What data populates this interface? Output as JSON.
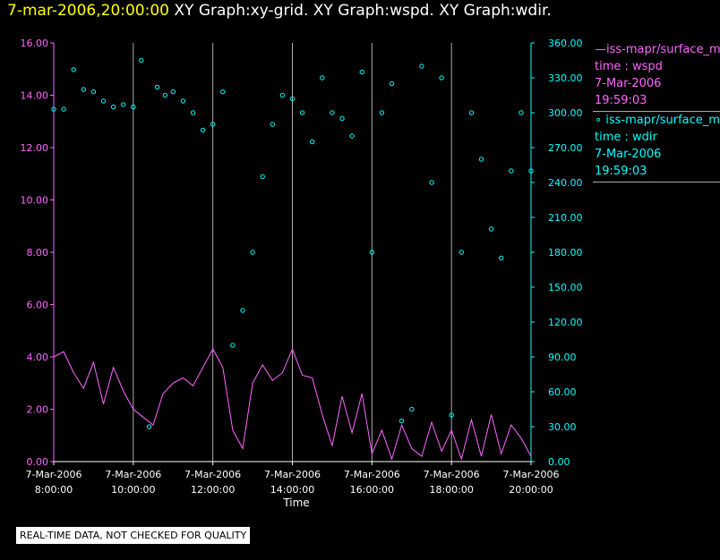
{
  "header": {
    "date_title": "7-mar-2006,20:00:00",
    "graph_titles": "XY Graph:xy-grid.  XY Graph:wspd.  XY Graph:wdir."
  },
  "legend": {
    "wspd": {
      "series": "—iss-mapr/surface_met",
      "time_label": "time : wspd",
      "date": "7-Mar-2006",
      "clock": "19:59:03"
    },
    "wdir": {
      "series": "∘ iss-mapr/surface_met",
      "time_label": "time : wdir",
      "date": "7-Mar-2006",
      "clock": "19:59:03"
    }
  },
  "notice": "REAL-TIME DATA, NOT CHECKED FOR QUALITY",
  "colors": {
    "wspd": "#ff66ff",
    "wdir": "#00ffff",
    "left_axis": "#ff66ff",
    "right_axis": "#00ffff",
    "grid": "#aaaaaa"
  },
  "chart_data": {
    "type": "line",
    "xlabel": "Time",
    "xlim": [
      8,
      20
    ],
    "ylim_left": [
      0,
      16
    ],
    "ylim_right": [
      0,
      360
    ],
    "x_ticks": [
      {
        "hour": 8,
        "date": "7-Mar-2006",
        "time": "8:00:00"
      },
      {
        "hour": 10,
        "date": "7-Mar-2006",
        "time": "10:00:00"
      },
      {
        "hour": 12,
        "date": "7-Mar-2006",
        "time": "12:00:00"
      },
      {
        "hour": 14,
        "date": "7-Mar-2006",
        "time": "14:00:00"
      },
      {
        "hour": 16,
        "date": "7-Mar-2006",
        "time": "16:00:00"
      },
      {
        "hour": 18,
        "date": "7-Mar-2006",
        "time": "18:00:00"
      },
      {
        "hour": 20,
        "date": "7-Mar-2006",
        "time": "20:00:00"
      }
    ],
    "y_left_ticks": [
      "0.00",
      "2.00",
      "4.00",
      "6.00",
      "8.00",
      "10.00",
      "12.00",
      "14.00",
      "16.00"
    ],
    "y_right_ticks": [
      "0.00",
      "30.00",
      "60.00",
      "90.00",
      "120.00",
      "150.00",
      "180.00",
      "210.00",
      "240.00",
      "270.00",
      "300.00",
      "330.00",
      "360.00"
    ],
    "series": [
      {
        "name": "wspd",
        "axis": "left",
        "style": "line",
        "x": [
          8,
          8.25,
          8.5,
          8.75,
          9,
          9.25,
          9.5,
          9.75,
          10,
          10.25,
          10.5,
          10.75,
          11,
          11.25,
          11.5,
          11.75,
          12,
          12.25,
          12.5,
          12.75,
          13,
          13.25,
          13.5,
          13.75,
          14,
          14.25,
          14.5,
          14.75,
          15,
          15.25,
          15.5,
          15.75,
          16,
          16.25,
          16.5,
          16.75,
          17,
          17.25,
          17.5,
          17.75,
          18,
          18.25,
          18.5,
          18.75,
          19,
          19.25,
          19.5,
          19.75,
          20
        ],
        "values": [
          4.0,
          4.2,
          3.4,
          2.8,
          3.8,
          2.2,
          3.6,
          2.7,
          2.0,
          1.7,
          1.4,
          2.6,
          3.0,
          3.2,
          2.9,
          3.6,
          4.3,
          3.6,
          1.2,
          0.5,
          3.0,
          3.7,
          3.1,
          3.4,
          4.3,
          3.3,
          3.2,
          1.8,
          0.6,
          2.5,
          1.1,
          2.6,
          0.3,
          1.2,
          0.1,
          1.4,
          0.5,
          0.2,
          1.5,
          0.4,
          1.2,
          0.1,
          1.6,
          0.2,
          1.8,
          0.3,
          1.4,
          0.9,
          0.2
        ]
      },
      {
        "name": "wdir",
        "axis": "right",
        "style": "scatter",
        "x": [
          8,
          8.25,
          8.5,
          8.75,
          9,
          9.25,
          9.5,
          9.75,
          10,
          10.2,
          10.4,
          10.6,
          10.8,
          11,
          11.25,
          11.5,
          11.75,
          12,
          12.25,
          12.5,
          12.75,
          13,
          13.25,
          13.5,
          13.75,
          14,
          14.25,
          14.5,
          14.75,
          15,
          15.25,
          15.5,
          15.75,
          16,
          16.25,
          16.5,
          16.75,
          17,
          17.25,
          17.5,
          17.75,
          18,
          18.25,
          18.5,
          18.75,
          19,
          19.25,
          19.5,
          19.75,
          20
        ],
        "values": [
          303,
          303,
          337,
          320,
          318,
          310,
          305,
          307,
          305,
          345,
          30,
          322,
          315,
          318,
          310,
          300,
          285,
          290,
          318,
          100,
          130,
          180,
          245,
          290,
          315,
          312,
          300,
          275,
          330,
          300,
          295,
          280,
          335,
          180,
          300,
          325,
          35,
          45,
          340,
          240,
          330,
          40,
          180,
          300,
          260,
          200,
          175,
          250,
          300,
          250
        ]
      }
    ]
  }
}
